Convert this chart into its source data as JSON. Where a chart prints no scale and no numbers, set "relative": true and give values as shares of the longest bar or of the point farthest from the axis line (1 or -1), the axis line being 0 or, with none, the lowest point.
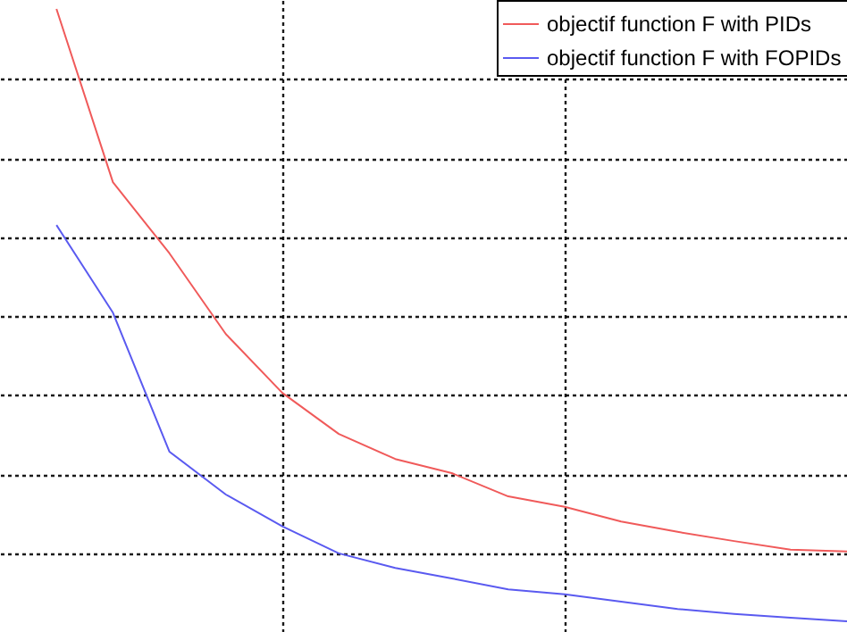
{
  "chart_data": {
    "type": "line",
    "relative": true,
    "grid": true,
    "legend": "top right",
    "categories": [
      null,
      null,
      null,
      null,
      null,
      null,
      null,
      null,
      null,
      null,
      null,
      null,
      null,
      null,
      null
    ],
    "series": [
      {
        "name": "objectif function F with PIDs",
        "color": "#f05a5a",
        "values": [
          1,
          0.717,
          0.601,
          0.469,
          0.373,
          0.306,
          0.265,
          0.242,
          0.204,
          0.187,
          0.163,
          0.146,
          0.131,
          0.117,
          0.114
        ]
      },
      {
        "name": "objectif function F with FOPIDs",
        "color": "#5a5af0",
        "values": [
          0.647,
          0.504,
          0.277,
          0.207,
          0.155,
          0.111,
          0.087,
          0.07,
          0.052,
          0.044,
          0.032,
          0.02,
          0.012,
          0.006,
          0
        ]
      }
    ]
  }
}
